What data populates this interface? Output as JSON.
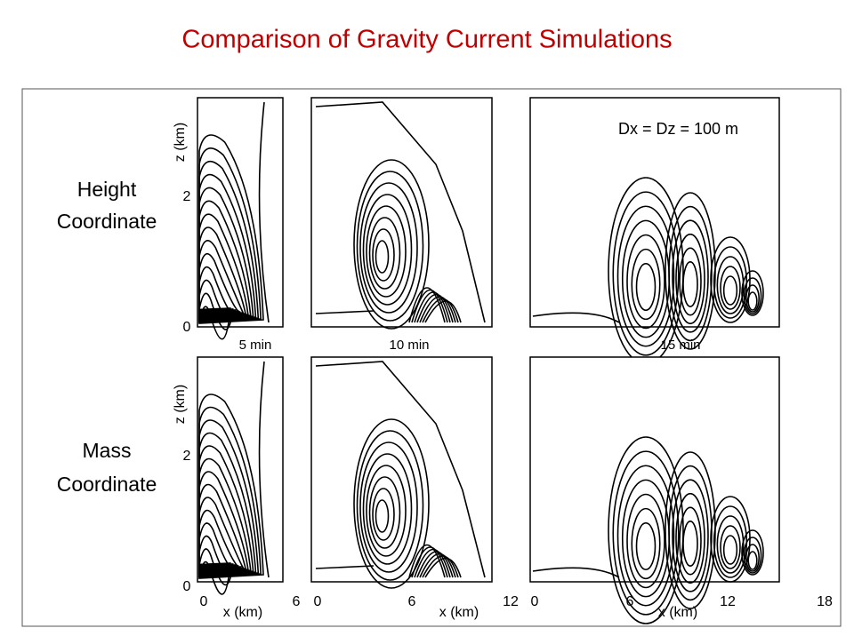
{
  "title": "Comparison of Gravity Current Simulations",
  "rows": [
    {
      "label_lines": [
        "Height",
        "Coordinate"
      ]
    },
    {
      "label_lines": [
        "Mass",
        "Coordinate"
      ]
    }
  ],
  "annotation": "Dx = Dz = 100 m",
  "time_labels": [
    "5 min",
    "10 min",
    "15 min"
  ],
  "z_axis": {
    "label": "z (km)",
    "ticks": [
      "0",
      "2"
    ]
  },
  "x_axis": {
    "label": "x (km)",
    "ticks": [
      [
        "0",
        "6"
      ],
      [
        "0",
        "6",
        "12"
      ],
      [
        "0",
        "6",
        "12",
        "18"
      ]
    ]
  }
}
